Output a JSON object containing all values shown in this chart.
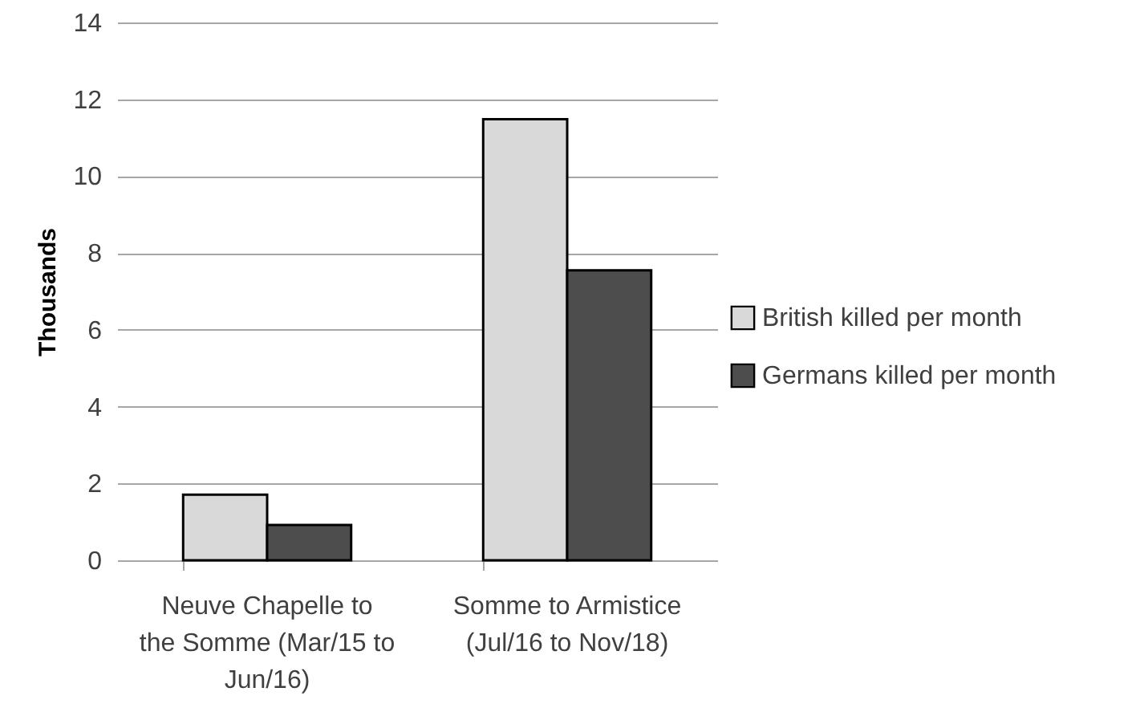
{
  "chart_data": {
    "type": "bar",
    "ylabel": "Thousands",
    "categories": [
      "Neuve Chapelle to the Somme (Mar/15 to Jun/16)",
      "Somme to Armistice (Jul/16 to Nov/18)"
    ],
    "series": [
      {
        "name": "British killed per month",
        "color": "#d9d9d9",
        "values": [
          1.71,
          11.48
        ]
      },
      {
        "name": "Germans killed per month",
        "color": "#4d4d4d",
        "values": [
          0.92,
          7.55
        ]
      }
    ],
    "ylim": [
      0,
      14
    ],
    "yticks": [
      0,
      2,
      4,
      6,
      8,
      10,
      12,
      14
    ],
    "grid": "y",
    "legend": "right"
  }
}
